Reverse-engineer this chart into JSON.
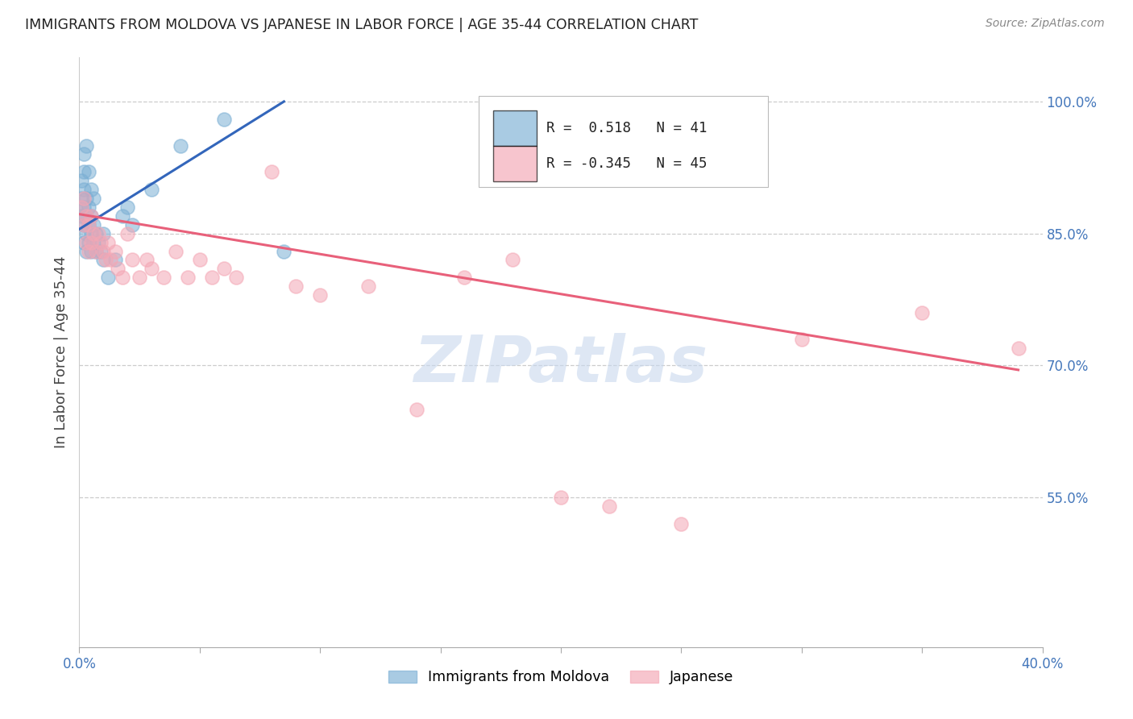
{
  "title": "IMMIGRANTS FROM MOLDOVA VS JAPANESE IN LABOR FORCE | AGE 35-44 CORRELATION CHART",
  "source": "Source: ZipAtlas.com",
  "ylabel": "In Labor Force | Age 35-44",
  "xlim": [
    0.0,
    0.4
  ],
  "ylim": [
    0.38,
    1.05
  ],
  "right_yticks": [
    0.55,
    0.7,
    0.85,
    1.0
  ],
  "right_yticklabels": [
    "55.0%",
    "70.0%",
    "85.0%",
    "100.0%"
  ],
  "watermark": "ZIPatlas",
  "blue_R": "0.518",
  "blue_N": "41",
  "pink_R": "-0.345",
  "pink_N": "45",
  "blue_color": "#7BAFD4",
  "pink_color": "#F4A7B5",
  "blue_line_color": "#3366BB",
  "pink_line_color": "#E8607A",
  "legend_label_blue": "Immigrants from Moldova",
  "legend_label_pink": "Japanese",
  "blue_x": [
    0.001,
    0.001,
    0.001,
    0.001,
    0.002,
    0.002,
    0.002,
    0.002,
    0.002,
    0.002,
    0.003,
    0.003,
    0.003,
    0.003,
    0.003,
    0.004,
    0.004,
    0.004,
    0.004,
    0.005,
    0.005,
    0.005,
    0.005,
    0.006,
    0.006,
    0.006,
    0.007,
    0.007,
    0.008,
    0.009,
    0.01,
    0.01,
    0.012,
    0.015,
    0.018,
    0.02,
    0.022,
    0.03,
    0.042,
    0.06,
    0.085
  ],
  "blue_y": [
    0.87,
    0.88,
    0.89,
    0.91,
    0.84,
    0.86,
    0.88,
    0.9,
    0.92,
    0.94,
    0.83,
    0.85,
    0.87,
    0.89,
    0.95,
    0.84,
    0.86,
    0.88,
    0.92,
    0.83,
    0.85,
    0.87,
    0.9,
    0.84,
    0.86,
    0.89,
    0.83,
    0.85,
    0.84,
    0.83,
    0.82,
    0.85,
    0.8,
    0.82,
    0.87,
    0.88,
    0.86,
    0.9,
    0.95,
    0.98,
    0.83
  ],
  "pink_x": [
    0.001,
    0.002,
    0.002,
    0.003,
    0.003,
    0.004,
    0.004,
    0.005,
    0.005,
    0.006,
    0.007,
    0.008,
    0.009,
    0.01,
    0.011,
    0.012,
    0.013,
    0.015,
    0.016,
    0.018,
    0.02,
    0.022,
    0.025,
    0.028,
    0.03,
    0.035,
    0.04,
    0.045,
    0.05,
    0.055,
    0.06,
    0.065,
    0.08,
    0.09,
    0.1,
    0.12,
    0.14,
    0.16,
    0.18,
    0.2,
    0.22,
    0.25,
    0.3,
    0.35,
    0.39
  ],
  "pink_y": [
    0.88,
    0.86,
    0.89,
    0.84,
    0.87,
    0.83,
    0.86,
    0.84,
    0.87,
    0.85,
    0.83,
    0.85,
    0.84,
    0.83,
    0.82,
    0.84,
    0.82,
    0.83,
    0.81,
    0.8,
    0.85,
    0.82,
    0.8,
    0.82,
    0.81,
    0.8,
    0.83,
    0.8,
    0.82,
    0.8,
    0.81,
    0.8,
    0.92,
    0.79,
    0.78,
    0.79,
    0.65,
    0.8,
    0.82,
    0.55,
    0.54,
    0.52,
    0.73,
    0.76,
    0.72
  ],
  "blue_line_x": [
    0.0,
    0.085
  ],
  "blue_line_y": [
    0.855,
    1.0
  ],
  "pink_line_x": [
    0.0,
    0.39
  ],
  "pink_line_y": [
    0.872,
    0.695
  ]
}
